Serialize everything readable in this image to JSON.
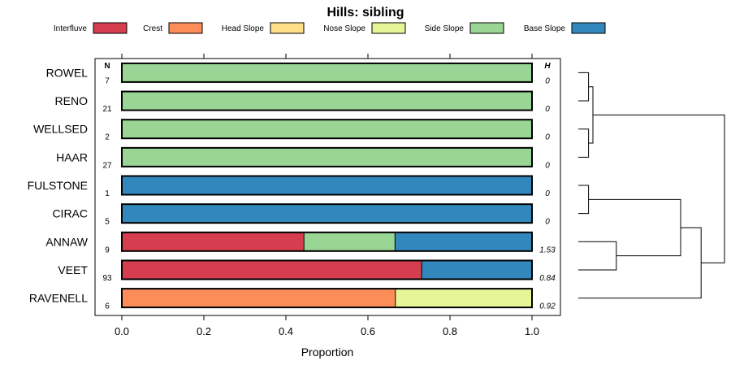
{
  "chart_data": {
    "type": "bar",
    "orientation": "horizontal",
    "stacked": true,
    "title": "Hills: sibling",
    "xlabel": "Proportion",
    "ylabel": "",
    "xlim": [
      0,
      1
    ],
    "xticks": [
      "0.0",
      "0.2",
      "0.4",
      "0.6",
      "0.8",
      "1.0"
    ],
    "n_header": "N",
    "h_header": "H",
    "legend_position": "top",
    "legend": [
      {
        "label": "Interfluve",
        "color": "#d53e4f"
      },
      {
        "label": "Crest",
        "color": "#fc8d59"
      },
      {
        "label": "Head Slope",
        "color": "#fee08b"
      },
      {
        "label": "Nose Slope",
        "color": "#e6f598"
      },
      {
        "label": "Side Slope",
        "color": "#99d594"
      },
      {
        "label": "Base Slope",
        "color": "#3288bd"
      }
    ],
    "categories": [
      "ROWEL",
      "RENO",
      "WELLSED",
      "HAAR",
      "FULSTONE",
      "CIRAC",
      "ANNAW",
      "VEET",
      "RAVENELL"
    ],
    "n": [
      "7",
      "21",
      "2",
      "27",
      "1",
      "5",
      "9",
      "93",
      "6"
    ],
    "h": [
      "0",
      "0",
      "0",
      "0",
      "0",
      "0",
      "1.53",
      "0.84",
      "0.92"
    ],
    "series": [
      {
        "name": "Interfluve",
        "values": [
          0,
          0,
          0,
          0,
          0,
          0,
          0.444,
          0.731,
          0
        ]
      },
      {
        "name": "Crest",
        "values": [
          0,
          0,
          0,
          0,
          0,
          0,
          0,
          0,
          0.667
        ]
      },
      {
        "name": "Head Slope",
        "values": [
          0,
          0,
          0,
          0,
          0,
          0,
          0,
          0,
          0
        ]
      },
      {
        "name": "Nose Slope",
        "values": [
          0,
          0,
          0,
          0,
          0,
          0,
          0,
          0,
          0.333
        ]
      },
      {
        "name": "Side Slope",
        "values": [
          1,
          1,
          1,
          1,
          0,
          0,
          0.222,
          0,
          0
        ]
      },
      {
        "name": "Base Slope",
        "values": [
          0,
          0,
          0,
          0,
          1,
          1,
          0.333,
          0.269,
          0
        ]
      }
    ],
    "dendrogram": {
      "leaves": [
        "ROWEL",
        "RENO",
        "WELLSED",
        "HAAR",
        "FULSTONE",
        "CIRAC",
        "ANNAW",
        "VEET",
        "RAVENELL"
      ],
      "merges": [
        {
          "a": "L0",
          "b": "L1",
          "height": 0.07
        },
        {
          "a": "L2",
          "b": "L3",
          "height": 0.07
        },
        {
          "a": "C0",
          "b": "C1",
          "height": 0.1
        },
        {
          "a": "L4",
          "b": "L5",
          "height": 0.07
        },
        {
          "a": "L6",
          "b": "L7",
          "height": 0.26
        },
        {
          "a": "C3",
          "b": "C4",
          "height": 0.7
        },
        {
          "a": "C5",
          "b": "L8",
          "height": 0.84
        },
        {
          "a": "C2",
          "b": "C6",
          "height": 1.0
        }
      ]
    }
  }
}
